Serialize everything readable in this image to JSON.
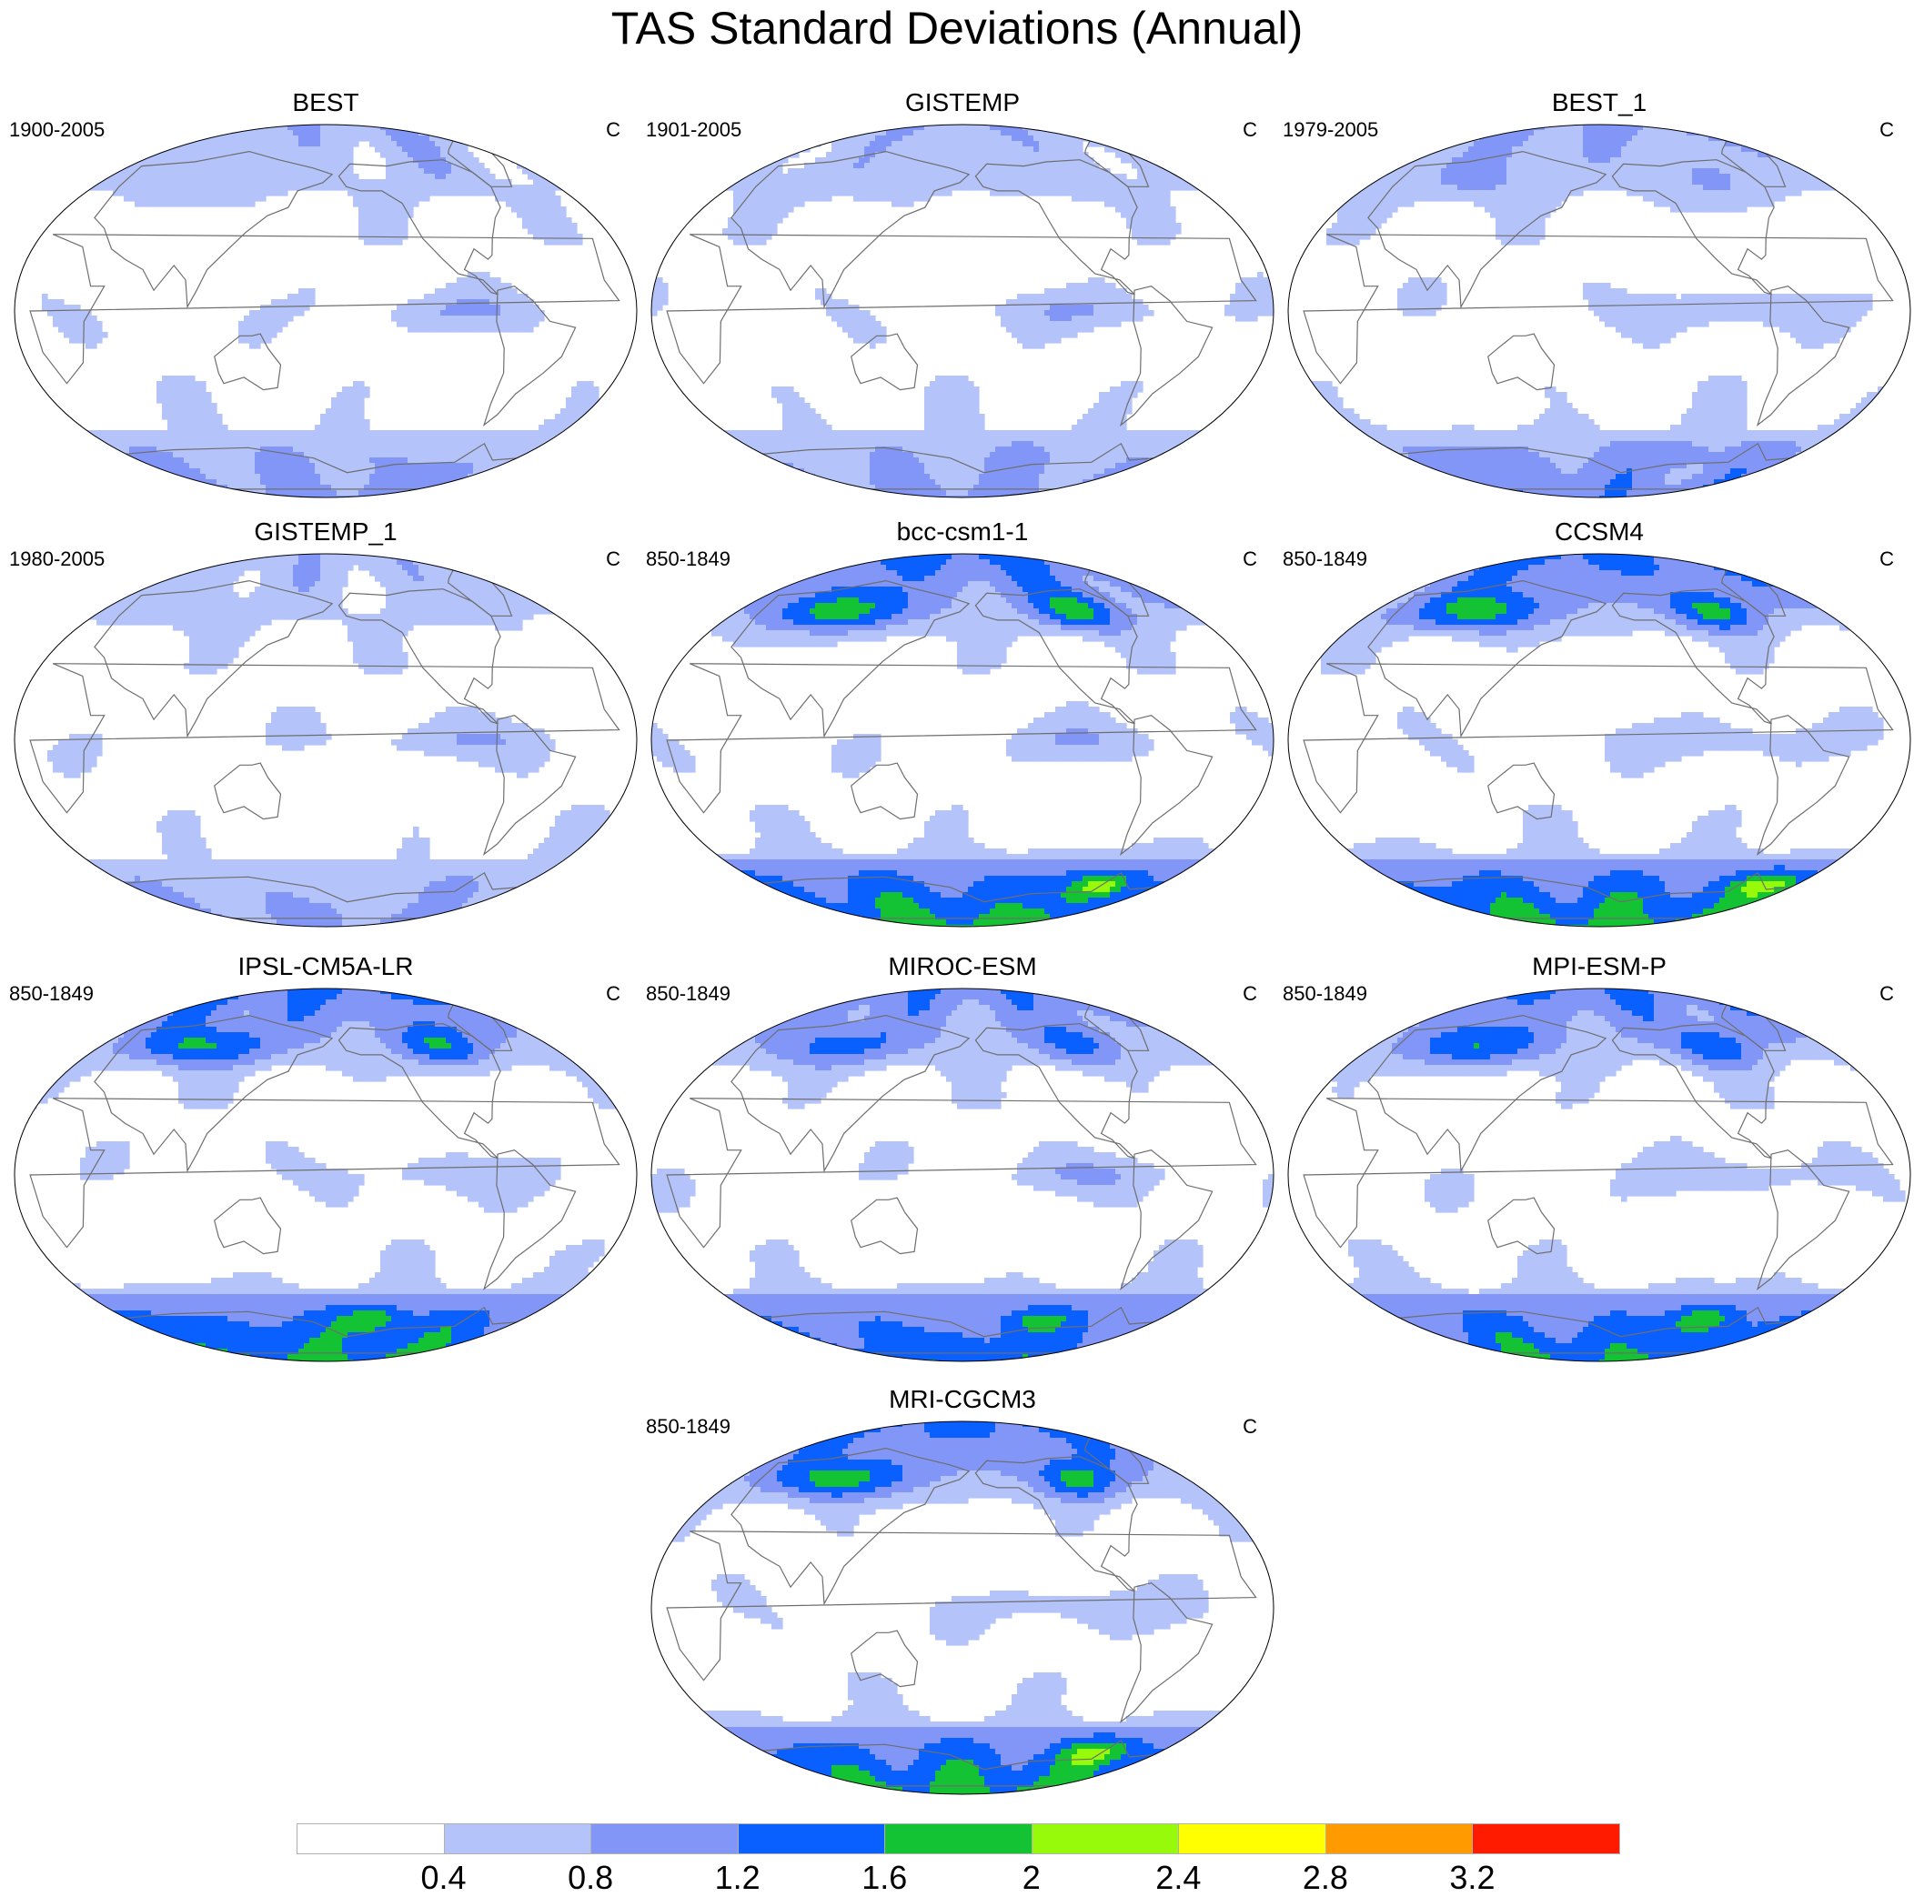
{
  "title": "TAS Standard Deviations (Annual)",
  "units": "C",
  "panels": [
    {
      "name": "BEST",
      "period": "1900-2005",
      "intensity": 0.55
    },
    {
      "name": "GISTEMP",
      "period": "1901-2005",
      "intensity": 0.55
    },
    {
      "name": "BEST_1",
      "period": "1979-2005",
      "intensity": 0.7
    },
    {
      "name": "GISTEMP_1",
      "period": "1980-2005",
      "intensity": 0.5
    },
    {
      "name": "bcc-csm1-1",
      "period": "850-1849",
      "intensity": 1.2
    },
    {
      "name": "CCSM4",
      "period": "850-1849",
      "intensity": 1.2
    },
    {
      "name": "IPSL-CM5A-LR",
      "period": "850-1849",
      "intensity": 1.15
    },
    {
      "name": "MIROC-ESM",
      "period": "850-1849",
      "intensity": 1.0
    },
    {
      "name": "MPI-ESM-P",
      "period": "850-1849",
      "intensity": 1.1
    },
    {
      "name": "MRI-CGCM3",
      "period": "850-1849",
      "intensity": 1.2
    }
  ],
  "legend": {
    "levels": [
      "0.4",
      "0.8",
      "1.2",
      "1.6",
      "2",
      "2.4",
      "2.8",
      "3.2"
    ],
    "colors": [
      "#ffffff",
      "#b4c3fa",
      "#8296f8",
      "#0a5fff",
      "#14c334",
      "#96fa0a",
      "#ffff00",
      "#ff9b00",
      "#ff1b00"
    ]
  }
}
